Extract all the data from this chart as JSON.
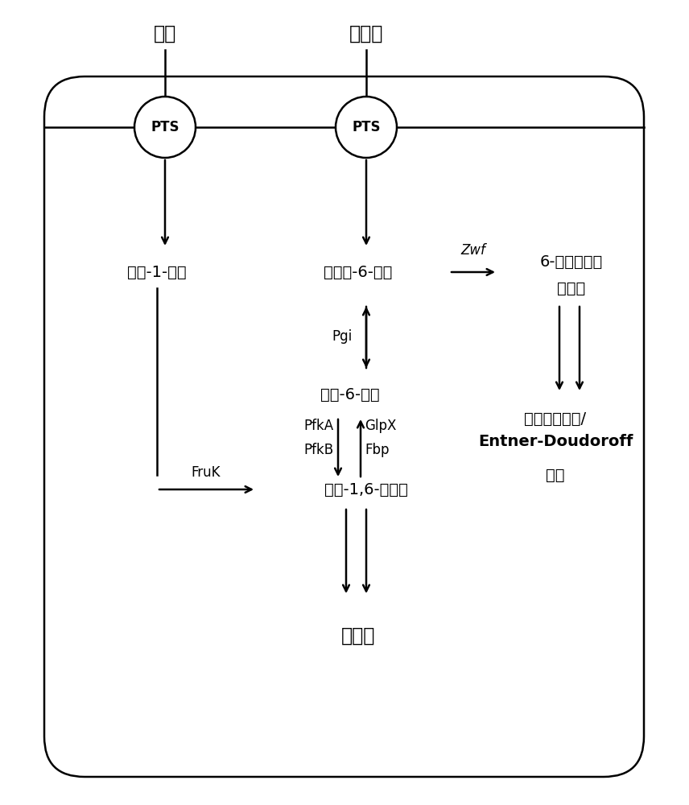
{
  "fig_width": 8.56,
  "fig_height": 10.0,
  "bg_color": "#ffffff",
  "box_color": "#000000",
  "text_color": "#000000",
  "font_size_large": 17,
  "font_size_medium": 14,
  "font_size_small": 12,
  "labels": {
    "fructose": "果糖",
    "glucose": "葡萄糖",
    "pts_left": "PTS",
    "pts_right": "PTS",
    "fructose1p": "果糖-1-磷酸",
    "glucose6p": "葡萄糖-6-磷酸",
    "zwf": "Zwf",
    "g6p_lactone_1": "6-磷酸葡萄糖",
    "g6p_lactone_2": "酸内酯",
    "pgi": "Pgi",
    "fructose6p": "果糖-6-磷酸",
    "pfkA": "PfkA",
    "pfkB": "PfkB",
    "glpX": "GlpX",
    "fbp": "Fbp",
    "fruk": "FruK",
    "fructose16p": "果糖-1,6-二磷酸",
    "pentose_1": "磷酸戊糖途径/",
    "pentose_2": "Entner-Doudoroff",
    "pentose_3": "途径",
    "glycolysis": "糖酵解"
  }
}
